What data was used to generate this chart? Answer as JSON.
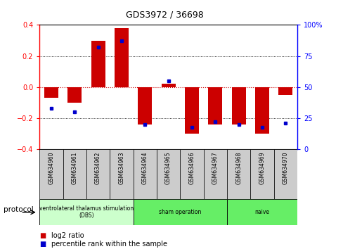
{
  "title": "GDS3972 / 36698",
  "samples": [
    "GSM634960",
    "GSM634961",
    "GSM634962",
    "GSM634963",
    "GSM634964",
    "GSM634965",
    "GSM634966",
    "GSM634967",
    "GSM634968",
    "GSM634969",
    "GSM634970"
  ],
  "log2_ratio": [
    -0.07,
    -0.1,
    0.3,
    0.38,
    -0.24,
    0.02,
    -0.3,
    -0.24,
    -0.24,
    -0.3,
    -0.05
  ],
  "percentile_rank": [
    33,
    30,
    82,
    87,
    20,
    55,
    18,
    22,
    20,
    18,
    21
  ],
  "bar_color": "#cc0000",
  "dot_color": "#0000cc",
  "ylim_left": [
    -0.4,
    0.4
  ],
  "ylim_right": [
    0,
    100
  ],
  "yticks_left": [
    -0.4,
    -0.2,
    0.0,
    0.2,
    0.4
  ],
  "yticks_right": [
    0,
    25,
    50,
    75,
    100
  ],
  "groups": [
    {
      "label": "ventrolateral thalamus stimulation\n(DBS)",
      "start": 0,
      "end": 3,
      "color": "#ccffcc"
    },
    {
      "label": "sham operation",
      "start": 4,
      "end": 7,
      "color": "#66ee66"
    },
    {
      "label": "naive",
      "start": 8,
      "end": 10,
      "color": "#66ee66"
    }
  ],
  "protocol_label": "protocol",
  "legend_red": "log2 ratio",
  "legend_blue": "percentile rank within the sample",
  "zero_line_color": "#cc0000",
  "background_plot": "#ffffff",
  "background_labels": "#cccccc"
}
